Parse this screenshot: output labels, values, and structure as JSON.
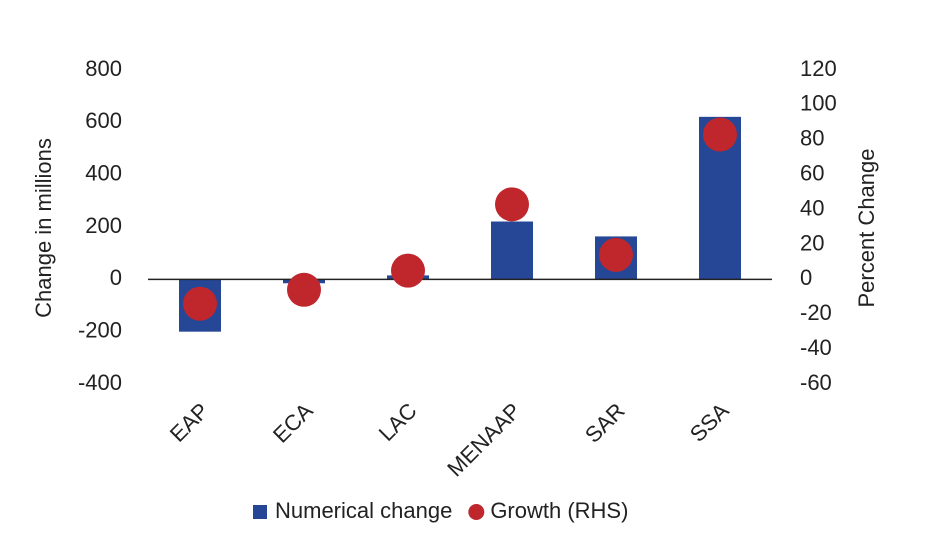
{
  "chart_data": {
    "type": "bar",
    "categories": [
      "EAP",
      "ECA",
      "LAC",
      "MENAAP",
      "SAR",
      "SSA"
    ],
    "y_label": "Change in millions",
    "y2_label": "Percent Change",
    "series": [
      {
        "name": "Numerical change",
        "color": "#264796",
        "type": "bar",
        "values": [
          -200,
          -15,
          15,
          221,
          164,
          621
        ]
      },
      {
        "name": "Growth (RHS)",
        "color": "#c0272d",
        "type": "scatter",
        "axis": "y2",
        "values": [
          -14,
          -6,
          5,
          43,
          14,
          83
        ]
      }
    ],
    "ylim": [
      -400,
      800
    ],
    "yticks": [
      -400,
      -200,
      0,
      200,
      400,
      600,
      800
    ],
    "y2lim": [
      -60,
      120
    ],
    "y2ticks": [
      -60,
      -40,
      -20,
      0,
      20,
      40,
      60,
      80,
      100,
      120
    ],
    "grid": false,
    "legend": "bottom"
  }
}
